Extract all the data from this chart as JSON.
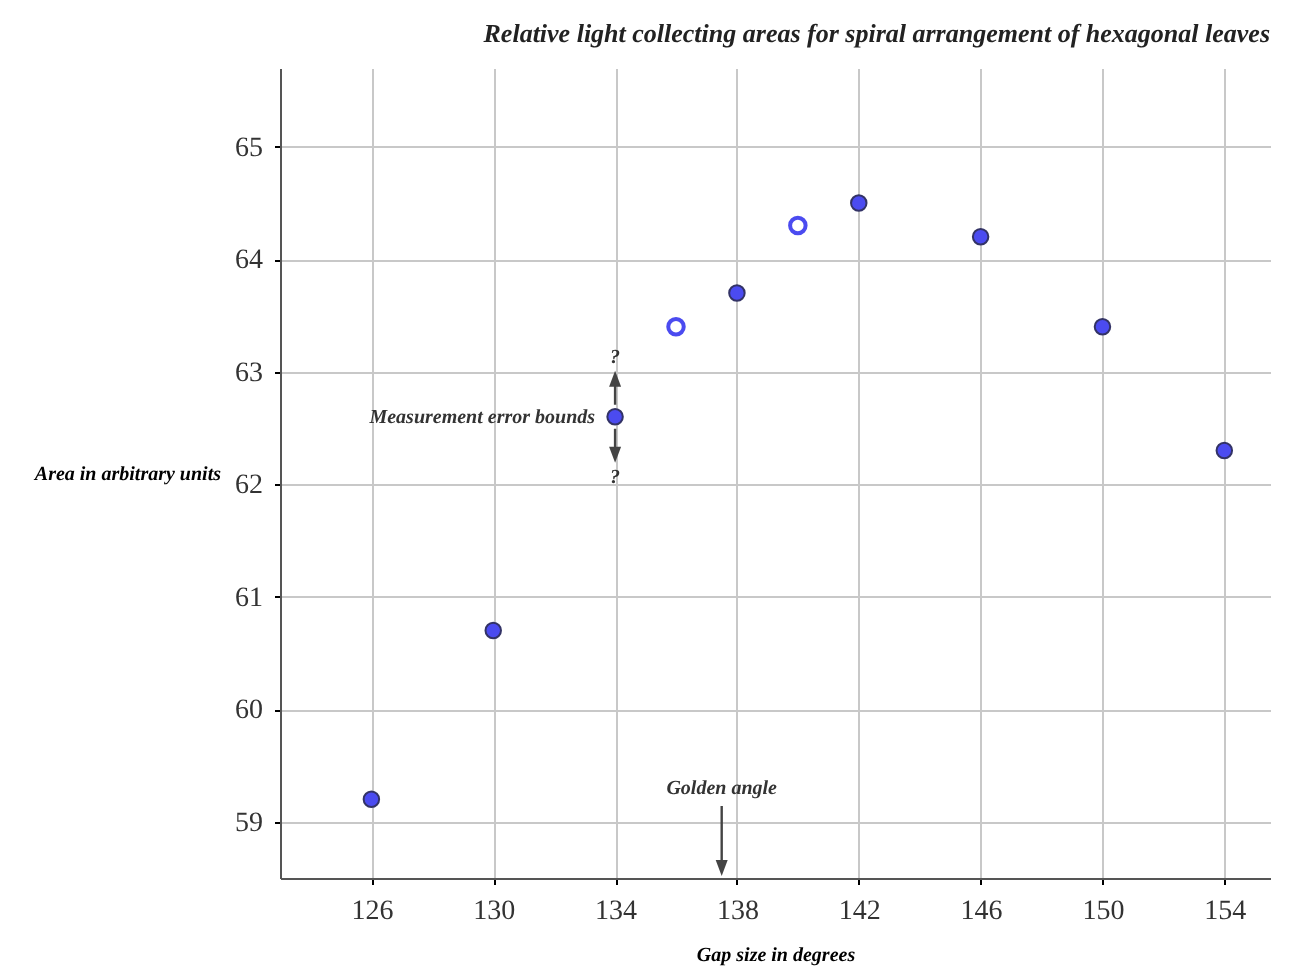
{
  "chart_data": {
    "type": "scatter",
    "title": "Relative light collecting areas for spiral  arrangement of hexagonal  leaves",
    "xlabel": "Gap size in degrees",
    "ylabel": "Area in arbitrary units",
    "series": [
      {
        "color": "#4b4bf0",
        "x": [
          126,
          130,
          134,
          138,
          142,
          146,
          150,
          154
        ],
        "values": [
          59.2,
          60.7,
          62.6,
          63.7,
          64.5,
          64.2,
          63.4,
          62.3
        ]
      },
      {
        "color": "#4b4bf0",
        "x": [
          136,
          140
        ],
        "values": [
          63.4,
          64.3
        ]
      }
    ],
    "annotations": [
      {
        "text": "Measurement error bounds",
        "x": 134,
        "y": 62.6
      },
      "?",
      "?"
    ],
    "ref_lines": [
      {
        "axis": "x",
        "value": 137.5,
        "label": "Golden angle"
      }
    ],
    "xlim": [
      123,
      155.5
    ],
    "ylim": [
      58.5,
      65.7
    ],
    "xticks": [
      126,
      130,
      134,
      138,
      142,
      146,
      150,
      154
    ],
    "yticks": [
      59,
      60,
      61,
      62,
      63,
      64,
      65
    ],
    "grid": true,
    "marker": "circle"
  }
}
